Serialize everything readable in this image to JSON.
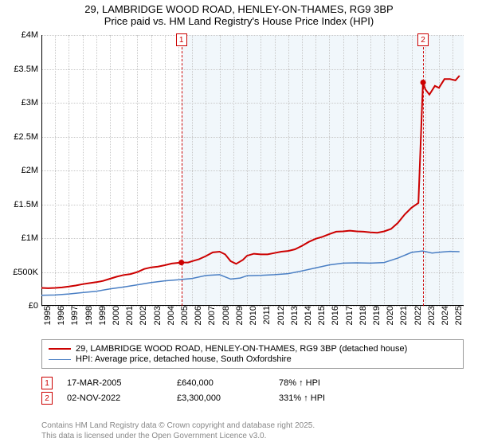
{
  "title": {
    "line1": "29, LAMBRIDGE WOOD ROAD, HENLEY-ON-THAMES, RG9 3BP",
    "line2": "Price paid vs. HM Land Registry's House Price Index (HPI)",
    "fontsize": 13,
    "color": "#000000"
  },
  "chart": {
    "type": "line",
    "background_color": "#ffffff",
    "shaded_bg_color": "#f1f7fb",
    "grid_color": "#c8c8c8",
    "axis_fontsize": 11,
    "y_axis": {
      "min": 0,
      "max": 4000000,
      "tick_step": 500000,
      "ticks": [
        {
          "v": 0,
          "label": "£0"
        },
        {
          "v": 500000,
          "label": "£500K"
        },
        {
          "v": 1000000,
          "label": "£1M"
        },
        {
          "v": 1500000,
          "label": "£1.5M"
        },
        {
          "v": 2000000,
          "label": "£2M"
        },
        {
          "v": 2500000,
          "label": "£2.5M"
        },
        {
          "v": 3000000,
          "label": "£3M"
        },
        {
          "v": 3500000,
          "label": "£3.5M"
        },
        {
          "v": 4000000,
          "label": "£4M"
        }
      ]
    },
    "x_axis": {
      "min": 1995,
      "max": 2025.8,
      "ticks": [
        1995,
        1996,
        1997,
        1998,
        1999,
        2000,
        2001,
        2002,
        2003,
        2004,
        2005,
        2006,
        2007,
        2008,
        2009,
        2010,
        2011,
        2012,
        2013,
        2014,
        2015,
        2016,
        2017,
        2018,
        2019,
        2020,
        2021,
        2022,
        2023,
        2024,
        2025
      ]
    },
    "series": [
      {
        "name": "price_paid",
        "label": "29, LAMBRIDGE WOOD ROAD, HENLEY-ON-THAMES, RG9 3BP (detached house)",
        "color": "#cc0000",
        "line_width": 2,
        "points": [
          [
            1995.0,
            265000
          ],
          [
            1995.5,
            260000
          ],
          [
            1996.0,
            265000
          ],
          [
            1996.5,
            272000
          ],
          [
            1997.0,
            285000
          ],
          [
            1997.5,
            300000
          ],
          [
            1998.0,
            320000
          ],
          [
            1998.5,
            335000
          ],
          [
            1999.0,
            350000
          ],
          [
            1999.5,
            368000
          ],
          [
            2000.0,
            400000
          ],
          [
            2000.5,
            430000
          ],
          [
            2001.0,
            455000
          ],
          [
            2001.5,
            470000
          ],
          [
            2002.0,
            500000
          ],
          [
            2002.5,
            545000
          ],
          [
            2003.0,
            568000
          ],
          [
            2003.5,
            580000
          ],
          [
            2004.0,
            600000
          ],
          [
            2004.5,
            625000
          ],
          [
            2005.2,
            640000
          ],
          [
            2005.7,
            640000
          ],
          [
            2006.0,
            660000
          ],
          [
            2006.5,
            690000
          ],
          [
            2007.0,
            735000
          ],
          [
            2007.5,
            790000
          ],
          [
            2008.0,
            800000
          ],
          [
            2008.4,
            760000
          ],
          [
            2008.8,
            660000
          ],
          [
            2009.2,
            620000
          ],
          [
            2009.7,
            680000
          ],
          [
            2010.0,
            740000
          ],
          [
            2010.5,
            770000
          ],
          [
            2011.0,
            760000
          ],
          [
            2011.5,
            760000
          ],
          [
            2012.0,
            780000
          ],
          [
            2012.5,
            800000
          ],
          [
            2013.0,
            810000
          ],
          [
            2013.5,
            835000
          ],
          [
            2014.0,
            885000
          ],
          [
            2014.5,
            945000
          ],
          [
            2015.0,
            990000
          ],
          [
            2015.5,
            1020000
          ],
          [
            2016.0,
            1060000
          ],
          [
            2016.5,
            1095000
          ],
          [
            2017.0,
            1100000
          ],
          [
            2017.5,
            1110000
          ],
          [
            2018.0,
            1100000
          ],
          [
            2018.5,
            1095000
          ],
          [
            2019.0,
            1085000
          ],
          [
            2019.5,
            1080000
          ],
          [
            2020.0,
            1100000
          ],
          [
            2020.5,
            1135000
          ],
          [
            2021.0,
            1225000
          ],
          [
            2021.5,
            1350000
          ],
          [
            2022.0,
            1450000
          ],
          [
            2022.5,
            1520000
          ],
          [
            2022.83,
            3300000
          ],
          [
            2023.0,
            3200000
          ],
          [
            2023.3,
            3120000
          ],
          [
            2023.7,
            3250000
          ],
          [
            2024.0,
            3220000
          ],
          [
            2024.4,
            3350000
          ],
          [
            2024.8,
            3350000
          ],
          [
            2025.2,
            3330000
          ],
          [
            2025.5,
            3400000
          ]
        ]
      },
      {
        "name": "hpi",
        "label": "HPI: Average price, detached house, South Oxfordshire",
        "color": "#4a7fc4",
        "line_width": 1.5,
        "points": [
          [
            1995.0,
            155000
          ],
          [
            1996.0,
            160000
          ],
          [
            1997.0,
            175000
          ],
          [
            1998.0,
            195000
          ],
          [
            1999.0,
            215000
          ],
          [
            2000.0,
            250000
          ],
          [
            2001.0,
            278000
          ],
          [
            2002.0,
            310000
          ],
          [
            2003.0,
            345000
          ],
          [
            2004.0,
            370000
          ],
          [
            2005.0,
            385000
          ],
          [
            2006.0,
            405000
          ],
          [
            2007.0,
            448000
          ],
          [
            2008.0,
            460000
          ],
          [
            2008.8,
            395000
          ],
          [
            2009.5,
            410000
          ],
          [
            2010.0,
            445000
          ],
          [
            2011.0,
            450000
          ],
          [
            2012.0,
            460000
          ],
          [
            2013.0,
            475000
          ],
          [
            2014.0,
            515000
          ],
          [
            2015.0,
            560000
          ],
          [
            2016.0,
            605000
          ],
          [
            2017.0,
            630000
          ],
          [
            2018.0,
            635000
          ],
          [
            2019.0,
            630000
          ],
          [
            2020.0,
            640000
          ],
          [
            2021.0,
            705000
          ],
          [
            2022.0,
            790000
          ],
          [
            2022.8,
            810000
          ],
          [
            2023.5,
            780000
          ],
          [
            2024.0,
            792000
          ],
          [
            2024.8,
            805000
          ],
          [
            2025.5,
            800000
          ]
        ]
      }
    ],
    "sale_markers": [
      {
        "n": "1",
        "x": 2005.21,
        "color": "#cc0000"
      },
      {
        "n": "2",
        "x": 2022.84,
        "color": "#cc0000"
      }
    ],
    "shaded_from_x": 2005.21
  },
  "legend": {
    "border_color": "#999999",
    "fontsize": 11
  },
  "sales": [
    {
      "n": "1",
      "date": "17-MAR-2005",
      "price": "£640,000",
      "pct": "78% ↑ HPI",
      "color": "#cc0000"
    },
    {
      "n": "2",
      "date": "02-NOV-2022",
      "price": "£3,300,000",
      "pct": "331% ↑ HPI",
      "color": "#cc0000"
    }
  ],
  "footer": {
    "line1": "Contains HM Land Registry data © Crown copyright and database right 2025.",
    "line2": "This data is licensed under the Open Government Licence v3.0.",
    "color": "#888888",
    "fontsize": 10
  }
}
